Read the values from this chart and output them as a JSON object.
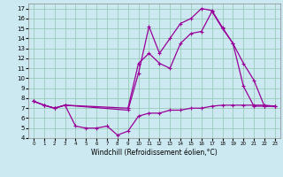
{
  "title": "",
  "xlabel": "Windchill (Refroidissement éolien,°C)",
  "ylabel": "",
  "bg_color": "#cce8f0",
  "grid_color": "#99ccbb",
  "line_color": "#990099",
  "xlim": [
    -0.5,
    23.5
  ],
  "ylim": [
    4,
    17.5
  ],
  "xticks": [
    0,
    1,
    2,
    3,
    4,
    5,
    6,
    7,
    8,
    9,
    10,
    11,
    12,
    13,
    14,
    15,
    16,
    17,
    18,
    19,
    20,
    21,
    22,
    23
  ],
  "yticks": [
    4,
    5,
    6,
    7,
    8,
    9,
    10,
    11,
    12,
    13,
    14,
    15,
    16,
    17
  ],
  "line1_x": [
    0,
    1,
    2,
    3,
    9,
    10,
    11,
    12,
    13,
    14,
    15,
    16,
    17,
    18,
    19,
    20,
    21,
    22,
    23
  ],
  "line1_y": [
    7.7,
    7.3,
    7.0,
    7.3,
    6.8,
    10.5,
    15.2,
    12.5,
    14.0,
    15.5,
    16.0,
    17.0,
    16.8,
    15.1,
    13.5,
    11.5,
    9.8,
    7.2,
    7.2
  ],
  "line2_x": [
    0,
    1,
    2,
    3,
    9,
    10,
    11,
    12,
    13,
    14,
    15,
    16,
    17,
    18,
    19,
    20,
    21,
    22,
    23
  ],
  "line2_y": [
    7.7,
    7.3,
    7.0,
    7.3,
    7.0,
    11.5,
    12.5,
    11.5,
    11.0,
    13.5,
    14.5,
    14.7,
    16.7,
    15.0,
    13.5,
    9.2,
    7.2,
    7.2,
    7.2
  ],
  "line3_x": [
    0,
    1,
    2,
    3,
    4,
    5,
    6,
    7,
    8,
    9,
    10,
    11,
    12,
    13,
    14,
    15,
    16,
    17,
    18,
    19,
    20,
    21,
    22,
    23
  ],
  "line3_y": [
    7.7,
    7.3,
    7.0,
    7.3,
    5.2,
    5.0,
    5.0,
    5.2,
    4.3,
    4.7,
    6.2,
    6.5,
    6.5,
    6.8,
    6.8,
    7.0,
    7.0,
    7.2,
    7.3,
    7.3,
    7.3,
    7.3,
    7.3,
    7.2
  ]
}
